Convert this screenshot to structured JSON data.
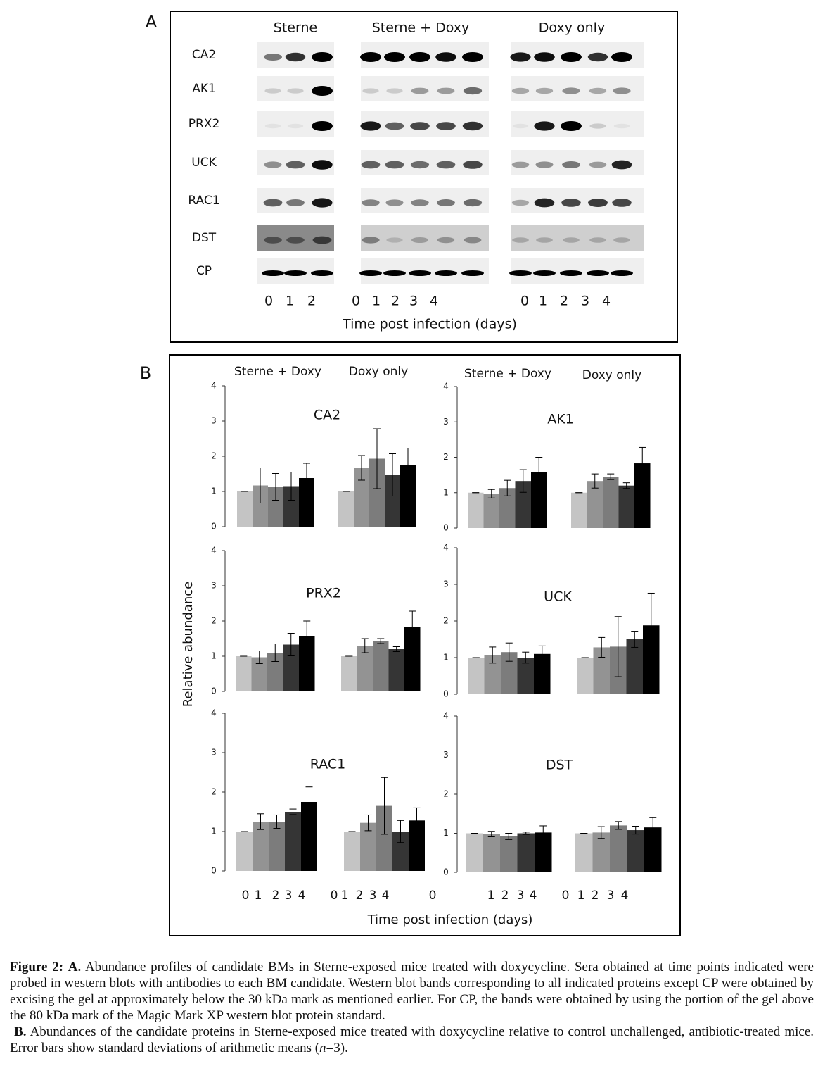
{
  "panel_a": {
    "label": "A",
    "conditions": [
      "Sterne",
      "Sterne + Doxy",
      "Doxy only"
    ],
    "proteins": [
      "CA2",
      "AK1",
      "PRX2",
      "UCK",
      "RAC1",
      "DST",
      "CP"
    ],
    "day_labels": [
      [
        "0",
        "1",
        "2"
      ],
      [
        "0",
        "1",
        "2",
        "3",
        "4"
      ],
      [
        "0",
        "1",
        "2",
        "3",
        "4"
      ]
    ],
    "x_label": "Time post infection (days)"
  },
  "panel_b": {
    "label": "B",
    "y_label": "Relative abundance",
    "x_label": "Time post infection (days)",
    "x_tick_labels": [
      "0",
      "1",
      "2",
      "3",
      "4",
      "0",
      "1",
      "2",
      "3",
      "4",
      "0",
      "1",
      "2",
      "3",
      "4",
      "0",
      "1",
      "2",
      "3",
      "4"
    ],
    "day_colors": [
      "#c4c4c4",
      "#939393",
      "#7c7c7c",
      "#353535",
      "#000000"
    ]
  },
  "chart_data": [
    {
      "type": "bar",
      "title": "CA2",
      "groups": [
        "Sterne + Doxy",
        "Doxy only"
      ],
      "ylim": [
        0,
        4
      ],
      "yticks": [
        0,
        1,
        2,
        3,
        4
      ],
      "series": [
        {
          "values": [
            1,
            1.17,
            1.13,
            1.15,
            1.38
          ],
          "errors": [
            0,
            0.5,
            0.38,
            0.4,
            0.42
          ]
        },
        {
          "values": [
            1,
            1.67,
            1.93,
            1.47,
            1.75
          ],
          "errors": [
            0,
            0.35,
            0.85,
            0.6,
            0.48
          ]
        }
      ]
    },
    {
      "type": "bar",
      "title": "AK1",
      "groups": [
        "Sterne + Doxy",
        "Doxy only"
      ],
      "ylim": [
        0,
        4
      ],
      "yticks": [
        0,
        1,
        2,
        3,
        4
      ],
      "series": [
        {
          "values": [
            1,
            0.97,
            1.13,
            1.33,
            1.58
          ],
          "errors": [
            0,
            0.12,
            0.22,
            0.32,
            0.42
          ]
        },
        {
          "values": [
            1,
            1.33,
            1.45,
            1.2,
            1.83
          ],
          "errors": [
            0,
            0.2,
            0.08,
            0.08,
            0.45
          ]
        }
      ]
    },
    {
      "type": "bar",
      "title": "PRX2",
      "ylim": [
        0,
        4
      ],
      "yticks": [
        0,
        1,
        2,
        3,
        4
      ],
      "series": [
        {
          "values": [
            1,
            0.97,
            1.1,
            1.33,
            1.58
          ],
          "errors": [
            0,
            0.18,
            0.25,
            0.32,
            0.42
          ]
        },
        {
          "values": [
            1,
            1.3,
            1.43,
            1.2,
            1.83
          ],
          "errors": [
            0,
            0.2,
            0.07,
            0.07,
            0.45
          ]
        }
      ]
    },
    {
      "type": "bar",
      "title": "UCK",
      "ylim": [
        0,
        4
      ],
      "yticks": [
        0,
        1,
        2,
        3,
        4
      ],
      "series": [
        {
          "values": [
            1,
            1.07,
            1.15,
            1.0,
            1.1
          ],
          "errors": [
            0,
            0.22,
            0.25,
            0.15,
            0.22
          ]
        },
        {
          "values": [
            1,
            1.28,
            1.3,
            1.5,
            1.88
          ],
          "errors": [
            0,
            0.27,
            0.82,
            0.22,
            0.88
          ]
        }
      ]
    },
    {
      "type": "bar",
      "title": "RAC1",
      "ylim": [
        0,
        4
      ],
      "yticks": [
        0,
        1,
        2,
        3,
        4
      ],
      "series": [
        {
          "values": [
            1,
            1.25,
            1.25,
            1.5,
            1.75
          ],
          "errors": [
            0,
            0.2,
            0.17,
            0.07,
            0.38
          ]
        },
        {
          "values": [
            1,
            1.22,
            1.65,
            1.0,
            1.28
          ],
          "errors": [
            0,
            0.2,
            0.72,
            0.28,
            0.32
          ]
        }
      ]
    },
    {
      "type": "bar",
      "title": "DST",
      "ylim": [
        0,
        4
      ],
      "yticks": [
        0,
        1,
        2,
        3,
        4
      ],
      "series": [
        {
          "values": [
            1,
            0.98,
            0.92,
            1.0,
            1.02
          ],
          "errors": [
            0,
            0.07,
            0.08,
            0.03,
            0.17
          ]
        },
        {
          "values": [
            1,
            1.02,
            1.2,
            1.08,
            1.15
          ],
          "errors": [
            0,
            0.15,
            0.1,
            0.1,
            0.25
          ]
        }
      ]
    }
  ],
  "caption": {
    "figure_label": "Figure 2:",
    "a_label": "A.",
    "a_text": "Abundance profiles of candidate BMs in Sterne-exposed mice treated with doxycycline.  Sera obtained at time points indicated were probed in western blots with antibodies to each BM candidate. Western blot bands corresponding to all indicated proteins except CP were obtained by excising the gel at approximately below the 30 kDa mark as mentioned earlier.  For CP, the bands were obtained by using the portion of the gel above the 80 kDa mark of the Magic Mark XP western blot protein standard.",
    "b_label": "B.",
    "b_text": "Abundances of the candidate proteins in Sterne-exposed mice treated with doxycycline relative to control unchallenged, antibiotic-treated mice.  Error bars show standard deviations of arithmetic means (",
    "b_italic": "n",
    "b_end": "=3)."
  }
}
